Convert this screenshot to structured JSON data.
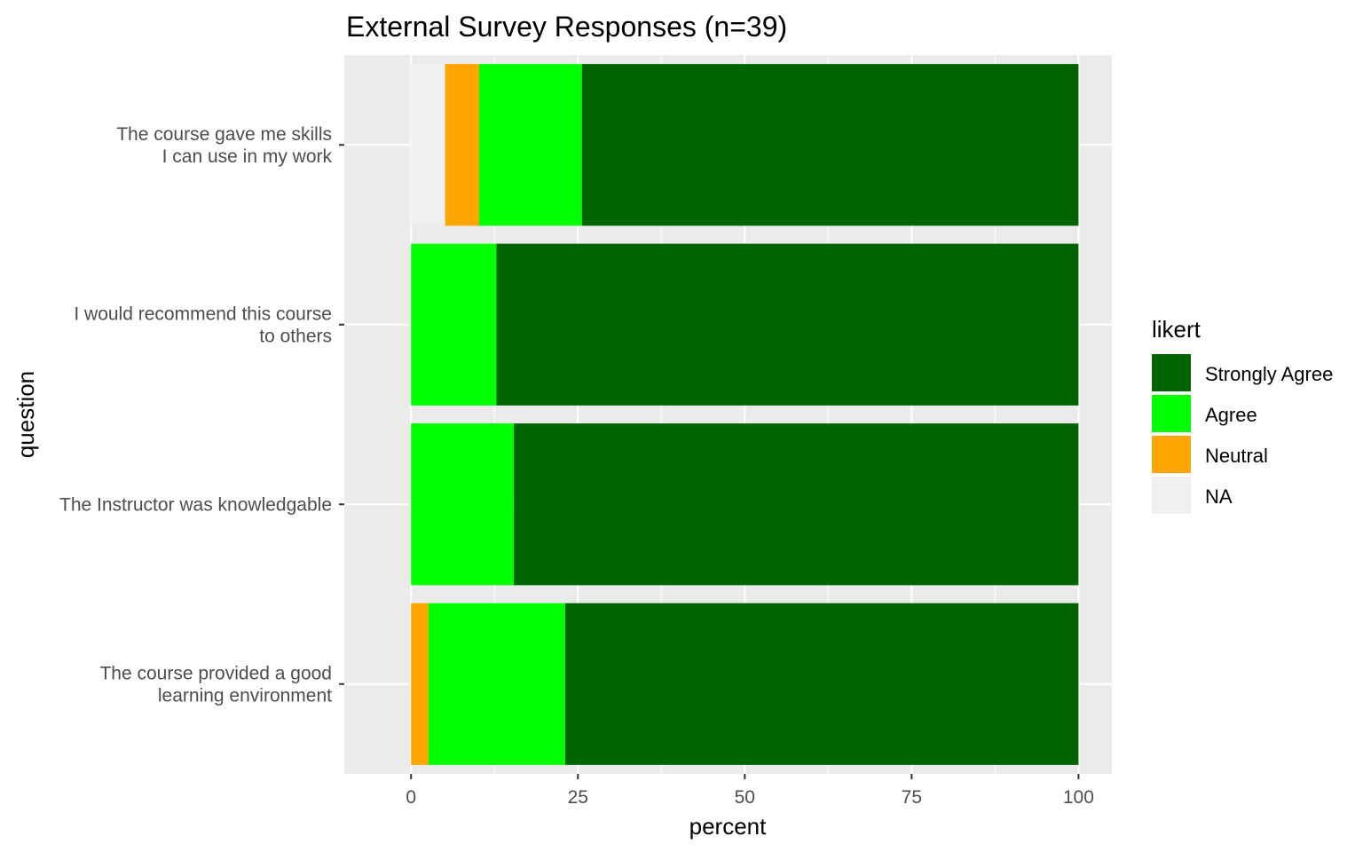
{
  "chart_data": {
    "type": "bar",
    "orientation": "horizontal",
    "stacked": true,
    "title": "External Survey Responses (n=39)",
    "xlabel": "percent",
    "ylabel": "question",
    "xlim": [
      -10,
      105
    ],
    "xticks": [
      0,
      25,
      50,
      75,
      100
    ],
    "grid": true,
    "legend_position": "right",
    "legend_title": "likert",
    "categories": [
      [
        "The course gave me skills",
        "I can use in my work"
      ],
      [
        "I would recommend this course",
        "to others"
      ],
      [
        "The Instructor was knowledgable"
      ],
      [
        "The course provided a good",
        "learning environment"
      ]
    ],
    "series": [
      {
        "name": "NA",
        "color": "#f0f0f0",
        "values": [
          5.1,
          0,
          0,
          0
        ]
      },
      {
        "name": "Neutral",
        "color": "#ffa500",
        "values": [
          5.1,
          0,
          0,
          2.6
        ]
      },
      {
        "name": "Agree",
        "color": "#00ff00",
        "values": [
          15.4,
          12.8,
          15.4,
          20.5
        ]
      },
      {
        "name": "Strongly Agree",
        "color": "#006400",
        "values": [
          74.4,
          87.2,
          84.6,
          76.9
        ]
      }
    ],
    "legend_order": [
      "Strongly Agree",
      "Agree",
      "Neutral",
      "NA"
    ]
  }
}
